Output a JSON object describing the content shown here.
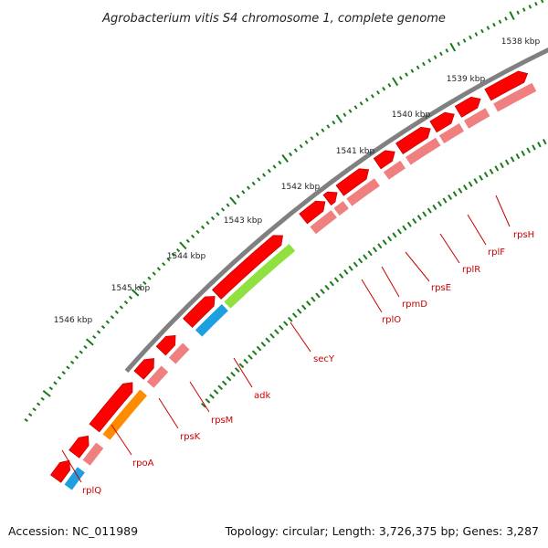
{
  "title": "Agrobacterium vitis S4 chromosome 1, complete genome",
  "accession_text": "Accession: NC_011989",
  "summary_text": "Topology: circular; Length: 3,726,375 bp; Genes: 3,287",
  "ruler": {
    "ticks": [
      {
        "label": "1538 kbp"
      },
      {
        "label": "1539 kbp"
      },
      {
        "label": "1540 kbp"
      },
      {
        "label": "1541 kbp"
      },
      {
        "label": "1542 kbp"
      },
      {
        "label": "1543 kbp"
      },
      {
        "label": "1544 kbp"
      },
      {
        "label": "1545 kbp"
      },
      {
        "label": "1546 kbp"
      }
    ]
  },
  "genes": [
    {
      "label": "rpsH"
    },
    {
      "label": "rplF"
    },
    {
      "label": "rplR"
    },
    {
      "label": "rpsE"
    },
    {
      "label": "rpmD"
    },
    {
      "label": "rplO"
    },
    {
      "label": "secY"
    },
    {
      "label": "adk"
    },
    {
      "label": "rpsM"
    },
    {
      "label": "rpsK"
    },
    {
      "label": "rpoA"
    },
    {
      "label": "rplQ"
    }
  ],
  "colors": {
    "cds": "#ff0000",
    "gene": "#f08080",
    "backbone": "#808080",
    "cog_blue": "#1ea0e0",
    "cog_green": "#90e040",
    "cog_orange": "#ff8c00",
    "tick": "#1a7a1a",
    "label": "#cc0000"
  }
}
